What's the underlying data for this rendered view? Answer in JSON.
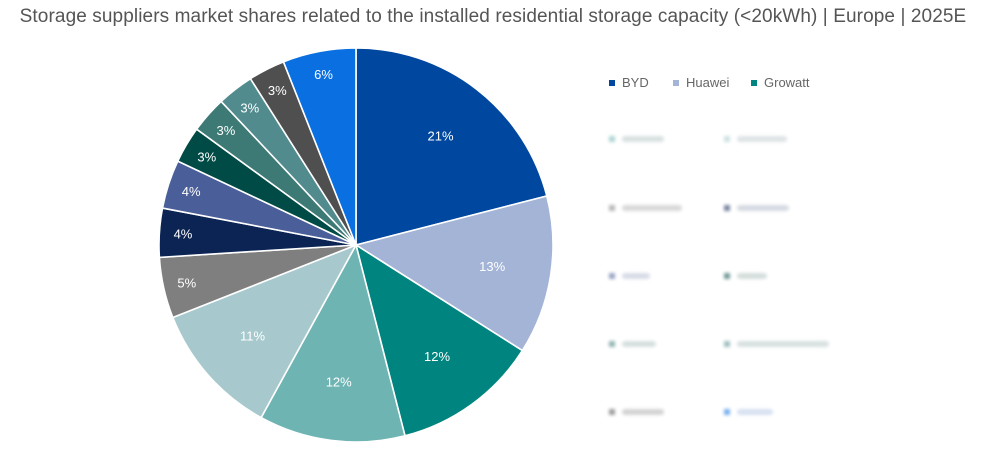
{
  "title": "Storage suppliers market shares related to the installed residential storage capacity (<20kWh) | Europe | 2025E",
  "chart_data": {
    "type": "pie",
    "title": "Storage suppliers market shares related to the installed residential storage capacity (<20kWh) | Europe | 2025E",
    "slices": [
      {
        "label": "BYD",
        "value": 21,
        "display": "21%",
        "color": "#0047A0"
      },
      {
        "label": "Huawei",
        "value": 13,
        "display": "13%",
        "color": "#A3B4D6"
      },
      {
        "label": "Growatt",
        "value": 12,
        "display": "12%",
        "color": "#00847F"
      },
      {
        "label": "",
        "value": 12,
        "display": "12%",
        "color": "#6DB4B2"
      },
      {
        "label": "",
        "value": 11,
        "display": "11%",
        "color": "#A7C9CD"
      },
      {
        "label": "",
        "value": 5,
        "display": "5%",
        "color": "#7F7F7F"
      },
      {
        "label": "",
        "value": 4,
        "display": "4%",
        "color": "#0B2454"
      },
      {
        "label": "",
        "value": 4,
        "display": "4%",
        "color": "#4A5F99"
      },
      {
        "label": "",
        "value": 3,
        "display": "3%",
        "color": "#004B45"
      },
      {
        "label": "",
        "value": 3,
        "display": "3%",
        "color": "#3D7A75"
      },
      {
        "label": "",
        "value": 3,
        "display": "3%",
        "color": "#528B8E"
      },
      {
        "label": "",
        "value": 3,
        "display": "3%",
        "color": "#4F4F4F"
      },
      {
        "label": "",
        "value": 6,
        "display": "6%",
        "color": "#0A6FE0"
      }
    ],
    "legend_position": "right"
  }
}
